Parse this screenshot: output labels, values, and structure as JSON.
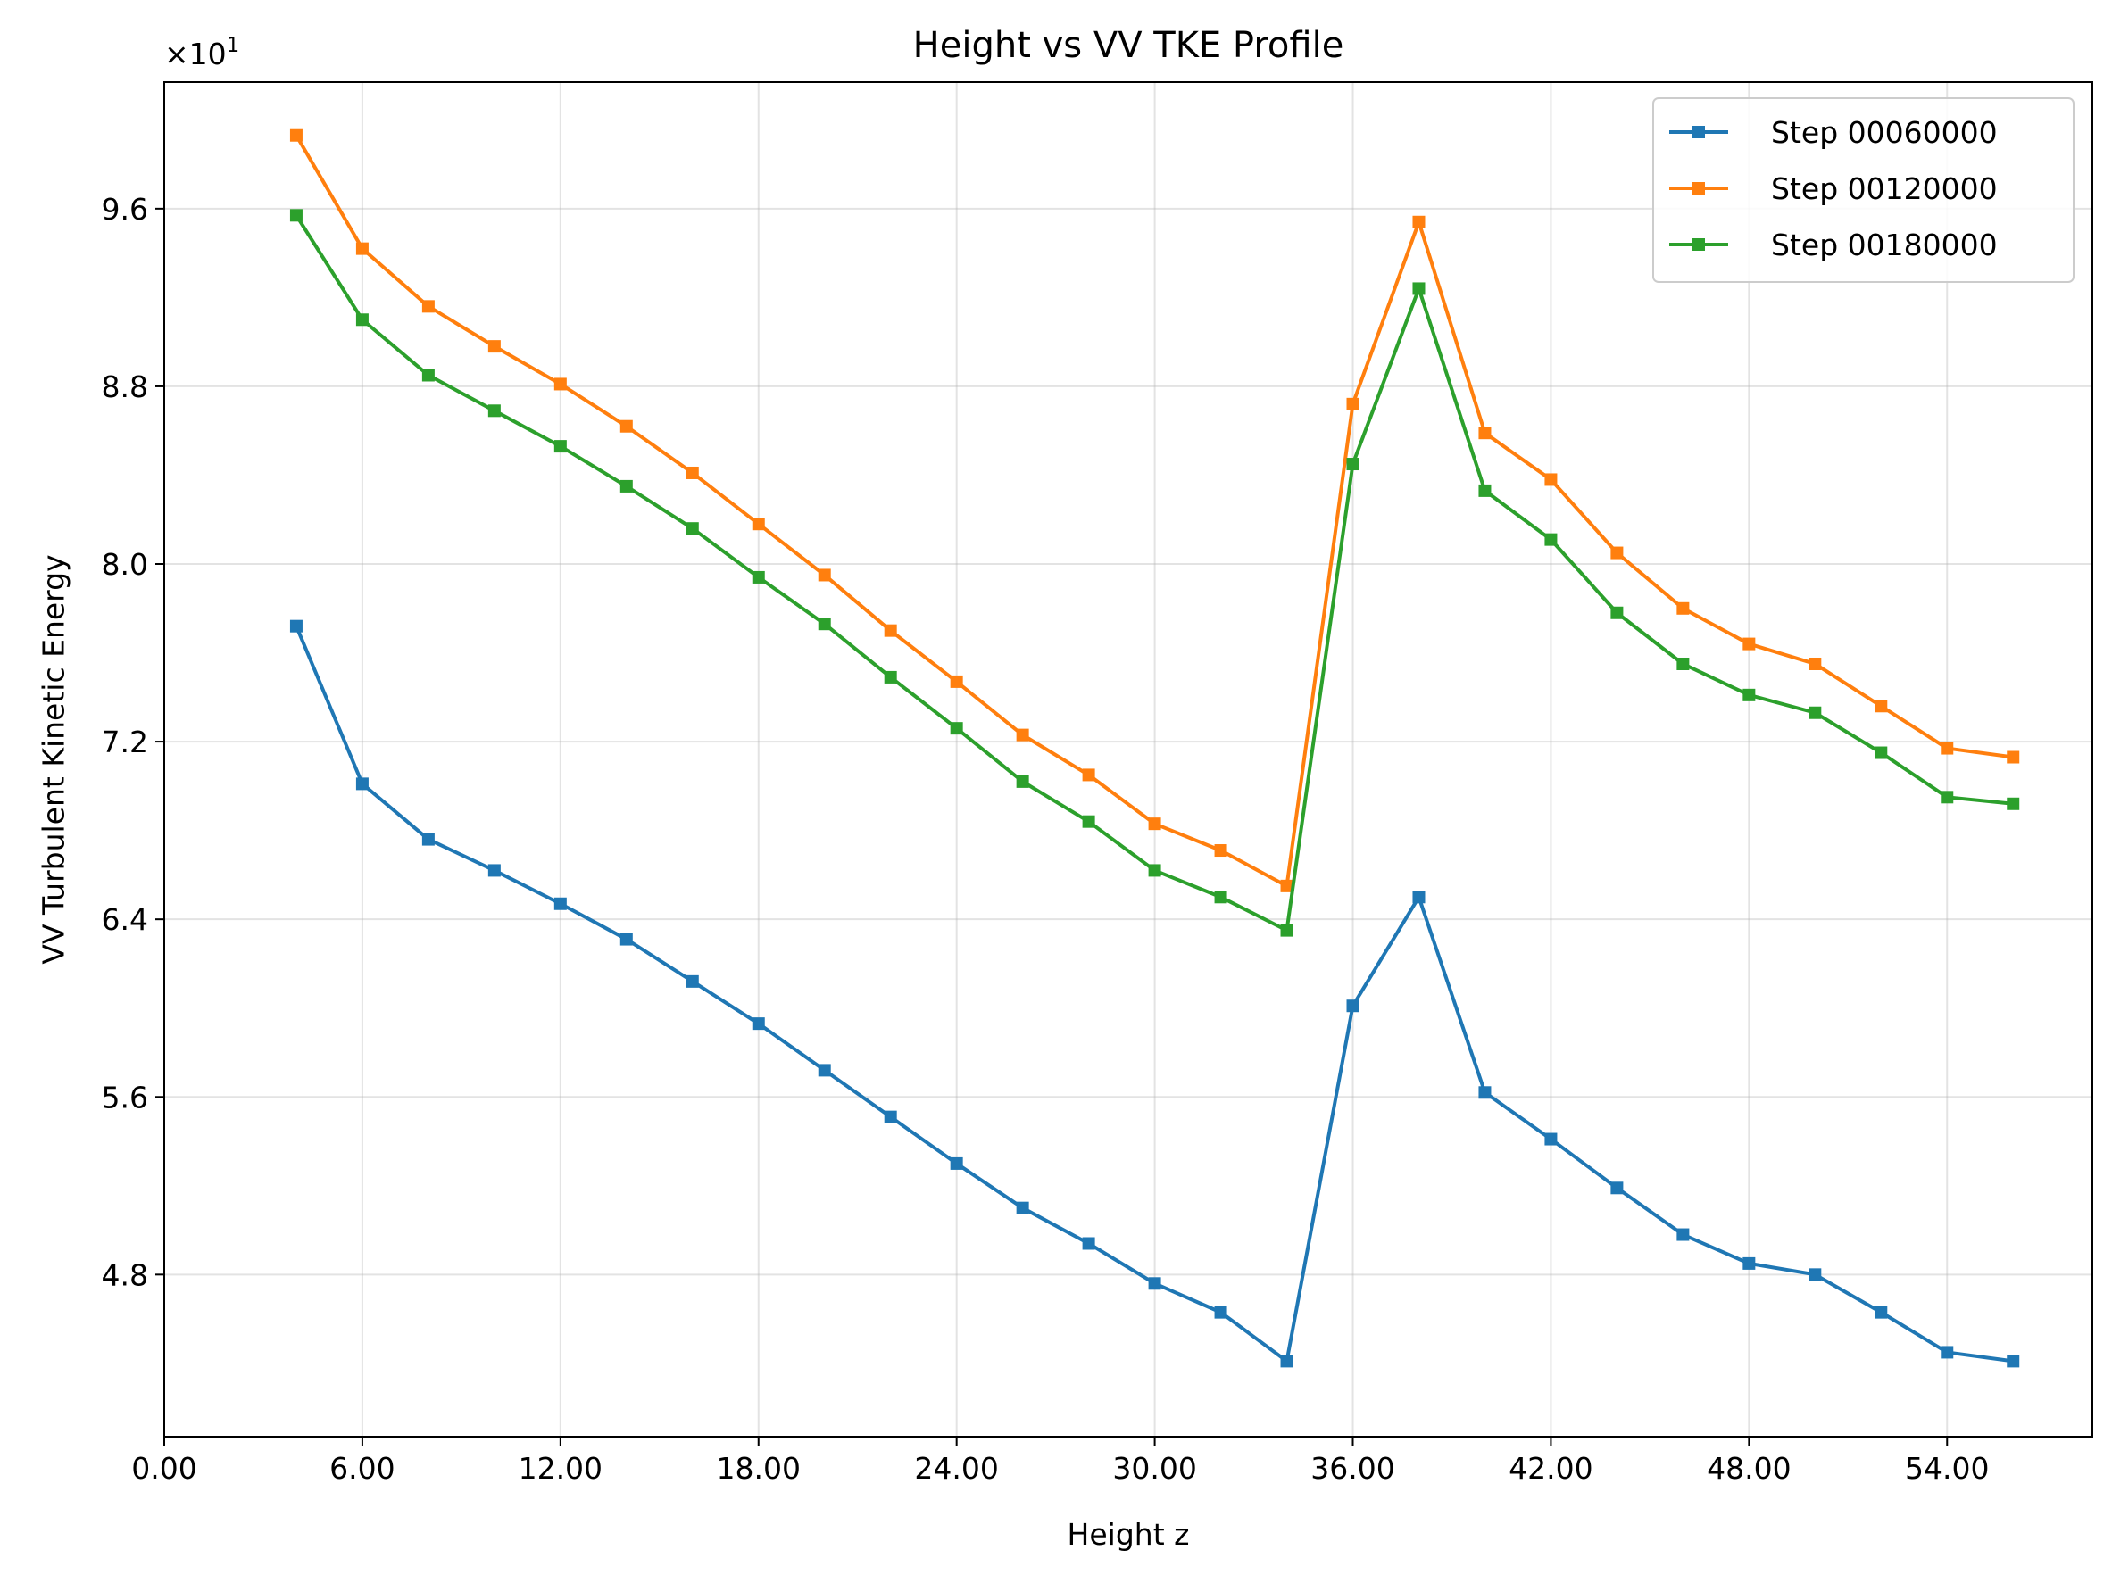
{
  "chart_data": {
    "type": "line",
    "title": "Height vs VV TKE Profile",
    "xlabel": "Height z",
    "ylabel": "VV Turbulent Kinetic Energy",
    "y_multiplier": "×10",
    "y_multiplier_exp": "1",
    "xlim": [
      0,
      58.4
    ],
    "ylim": [
      4.07,
      10.17
    ],
    "x_ticks": [
      0,
      6,
      12,
      18,
      24,
      30,
      36,
      42,
      48,
      54
    ],
    "x_tick_labels": [
      "0.00",
      "6.00",
      "12.00",
      "18.00",
      "24.00",
      "30.00",
      "36.00",
      "42.00",
      "48.00",
      "54.00"
    ],
    "y_ticks": [
      4.8,
      5.6,
      6.4,
      7.2,
      8.0,
      8.8,
      9.6
    ],
    "y_tick_labels": [
      "4.8",
      "5.6",
      "6.4",
      "7.2",
      "8.0",
      "8.8",
      "9.6"
    ],
    "grid": true,
    "legend_position": "top-right",
    "x": [
      4,
      6,
      8,
      10,
      12,
      14,
      16,
      18,
      20,
      22,
      24,
      26,
      28,
      30,
      32,
      34,
      36,
      38,
      40,
      42,
      44,
      46,
      48,
      50,
      52,
      54,
      56
    ],
    "series": [
      {
        "name": "Step 00060000",
        "color": "#1f77b4",
        "values": [
          7.72,
          7.01,
          6.76,
          6.62,
          6.47,
          6.31,
          6.12,
          5.93,
          5.72,
          5.51,
          5.3,
          5.1,
          4.94,
          4.76,
          4.63,
          4.41,
          6.01,
          6.5,
          5.62,
          5.41,
          5.19,
          4.98,
          4.85,
          4.8,
          4.63,
          4.45,
          4.41
        ]
      },
      {
        "name": "Step 00120000",
        "color": "#ff7f0e",
        "values": [
          9.93,
          9.42,
          9.16,
          8.98,
          8.81,
          8.62,
          8.41,
          8.18,
          7.95,
          7.7,
          7.47,
          7.23,
          7.05,
          6.83,
          6.71,
          6.55,
          8.72,
          9.54,
          8.59,
          8.38,
          8.05,
          7.8,
          7.64,
          7.55,
          7.36,
          7.17,
          7.13
        ]
      },
      {
        "name": "Step 00180000",
        "color": "#2ca02c",
        "values": [
          9.57,
          9.1,
          8.85,
          8.69,
          8.53,
          8.35,
          8.16,
          7.94,
          7.73,
          7.49,
          7.26,
          7.02,
          6.84,
          6.62,
          6.5,
          6.35,
          8.45,
          9.24,
          8.33,
          8.11,
          7.78,
          7.55,
          7.41,
          7.33,
          7.15,
          6.95,
          6.92
        ]
      }
    ]
  }
}
